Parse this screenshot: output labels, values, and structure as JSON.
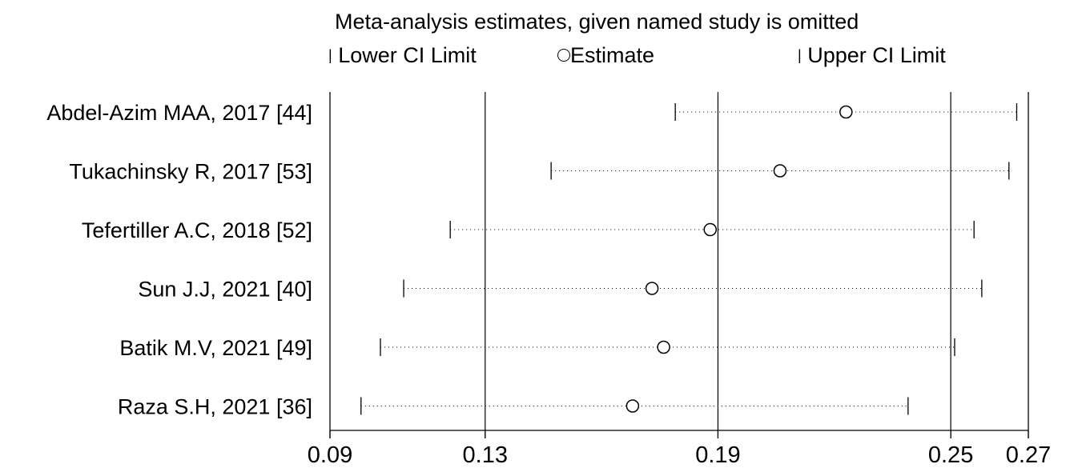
{
  "chart_data": {
    "type": "forest",
    "title": "Meta-analysis estimates, given named study is omitted",
    "legend": {
      "lower": "Lower CI Limit",
      "estimate": "Estimate",
      "upper": "Upper CI Limit",
      "placement": "top"
    },
    "xticks": [
      0.09,
      0.13,
      0.19,
      0.25,
      0.27
    ],
    "xtick_labels": [
      "0.09",
      "0.13",
      "0.19",
      "0.25",
      "0.27"
    ],
    "xlim": [
      0.09,
      0.27
    ],
    "vlines": [
      0.13,
      0.19,
      0.25
    ],
    "studies": [
      {
        "label": "Abdel-Azim MAA, 2017  [44]",
        "lower": 0.179,
        "estimate": 0.223,
        "upper": 0.267
      },
      {
        "label": "Tukachinsky R, 2017 [53]",
        "lower": 0.147,
        "estimate": 0.206,
        "upper": 0.265
      },
      {
        "label": "Tefertiller A.C, 2018 [52]",
        "lower": 0.121,
        "estimate": 0.188,
        "upper": 0.256
      },
      {
        "label": "Sun J.J, 2021 [40]",
        "lower": 0.109,
        "estimate": 0.173,
        "upper": 0.258
      },
      {
        "label": "Batik M.V, 2021 [49]",
        "lower": 0.103,
        "estimate": 0.176,
        "upper": 0.251
      },
      {
        "label": "Raza S.H, 2021 [36]",
        "lower": 0.098,
        "estimate": 0.168,
        "upper": 0.239
      }
    ]
  }
}
